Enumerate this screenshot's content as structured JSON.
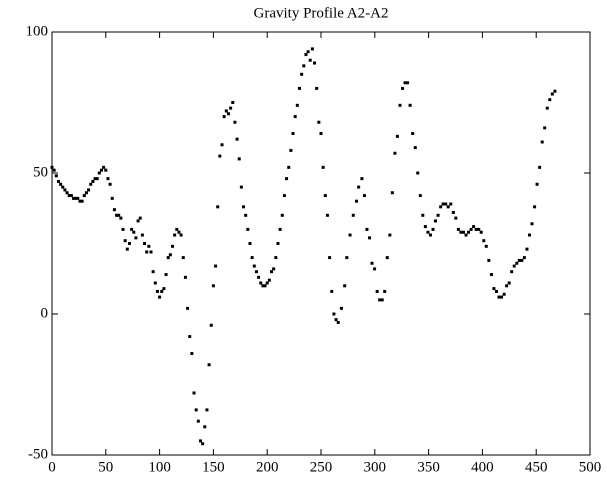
{
  "chart_data": {
    "type": "scatter",
    "title": "Gravity Profile A2-A2",
    "xlim": [
      0,
      500
    ],
    "xticks": [
      0,
      50,
      100,
      150,
      200,
      250,
      300,
      350,
      400,
      450,
      500
    ],
    "ylim": [
      -50,
      100
    ],
    "yticks": [
      -50,
      0,
      50,
      100
    ],
    "color": "#000000",
    "x": [
      0,
      2,
      4,
      6,
      8,
      10,
      12,
      14,
      16,
      18,
      20,
      22,
      24,
      26,
      28,
      30,
      32,
      34,
      36,
      38,
      40,
      42,
      44,
      46,
      48,
      50,
      52,
      54,
      56,
      58,
      60,
      62,
      64,
      66,
      68,
      70,
      72,
      74,
      76,
      78,
      80,
      82,
      84,
      86,
      88,
      90,
      92,
      94,
      96,
      98,
      100,
      102,
      104,
      106,
      108,
      110,
      112,
      114,
      116,
      118,
      120,
      122,
      124,
      126,
      128,
      130,
      132,
      134,
      136,
      138,
      140,
      142,
      144,
      146,
      148,
      150,
      152,
      154,
      156,
      158,
      160,
      162,
      164,
      166,
      168,
      170,
      172,
      174,
      176,
      178,
      180,
      182,
      184,
      186,
      188,
      190,
      192,
      194,
      196,
      198,
      200,
      202,
      204,
      206,
      208,
      210,
      212,
      214,
      216,
      218,
      220,
      222,
      224,
      226,
      228,
      230,
      232,
      234,
      236,
      238,
      240,
      242,
      244,
      246,
      248,
      250,
      252,
      254,
      256,
      258,
      260,
      262,
      264,
      266,
      269,
      272,
      274,
      277,
      280,
      283,
      285,
      288,
      290.4,
      292.7,
      295.1,
      297.4,
      299.8,
      302.2,
      304.5,
      306.9,
      309.2,
      311.6,
      314,
      316.3,
      318.7,
      321,
      323.4,
      325.8,
      328.1,
      330.5,
      332.8,
      335.2,
      337.6,
      339.9,
      342.3,
      344.6,
      347,
      349.4,
      351.7,
      354.1,
      356.4,
      358.8,
      361.2,
      363.5,
      365.9,
      368.2,
      370.6,
      373,
      375.3,
      377.7,
      380,
      382.4,
      384.8,
      387.1,
      389.5,
      391.8,
      394.2,
      396.6,
      398.9,
      401.3,
      403.6,
      406,
      408.4,
      410.7,
      413.1,
      415.4,
      417.8,
      420.2,
      422.5,
      424.9,
      427.2,
      429.6,
      432,
      434.3,
      436.7,
      439,
      441.4,
      443.8,
      446.1,
      448.5,
      450.8,
      453.2,
      455.6,
      457.9,
      460.3,
      462.6,
      465,
      467.4
    ],
    "values": [
      52,
      51,
      49,
      47,
      46,
      45,
      44,
      43,
      42,
      42,
      41,
      41,
      41,
      40,
      40,
      42,
      43,
      44,
      46,
      47,
      48,
      48,
      50,
      51,
      52,
      51,
      48,
      46,
      41,
      37,
      35,
      35,
      34,
      30,
      26,
      23,
      25,
      30,
      29,
      27,
      33,
      34,
      28,
      25,
      22,
      24,
      22,
      15,
      11,
      8,
      6,
      8,
      9,
      14,
      20,
      21,
      24,
      28,
      30,
      29,
      28,
      20,
      13,
      2,
      -8,
      -14,
      -28,
      -34,
      -38,
      -45,
      -46,
      -40,
      -34,
      -18,
      -4,
      10,
      17,
      38,
      56,
      60,
      70,
      72,
      71,
      73,
      75,
      68,
      62,
      55,
      45,
      38,
      35,
      30,
      25,
      20,
      17,
      15,
      13,
      11,
      10,
      10,
      11,
      12,
      15,
      16,
      20,
      25,
      30,
      35,
      42,
      48,
      52,
      58,
      64,
      70,
      74,
      80,
      85,
      88,
      92,
      93,
      90,
      94,
      89,
      80,
      68,
      64,
      52,
      42,
      35,
      20,
      8,
      0,
      -2,
      -3,
      2,
      10,
      20,
      28,
      35,
      40,
      45,
      48,
      42,
      30,
      27,
      18,
      16,
      8,
      5,
      5,
      8,
      20,
      28,
      43,
      57,
      63,
      74,
      80,
      82,
      82,
      74,
      64,
      59,
      50,
      42,
      35,
      31,
      29,
      28,
      30,
      33,
      35,
      38,
      39,
      39,
      38,
      39,
      36,
      34,
      30,
      29,
      29,
      28,
      29,
      30,
      31,
      30,
      30,
      29,
      26,
      24,
      19,
      14,
      9,
      8,
      6,
      6,
      7,
      10,
      11,
      15,
      17,
      18,
      19,
      19,
      20,
      23,
      28,
      32,
      38,
      46,
      52,
      61,
      66,
      73,
      76,
      78,
      79
    ]
  }
}
